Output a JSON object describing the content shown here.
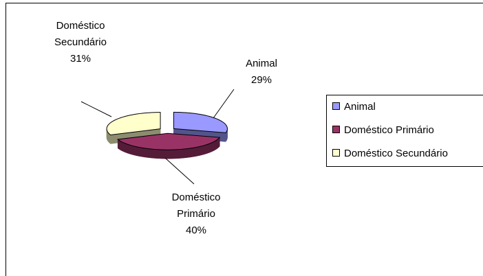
{
  "chart_data": {
    "type": "pie",
    "categories": [
      "Animal",
      "Doméstico Primário",
      "Doméstico Secundário"
    ],
    "values": [
      29,
      40,
      31
    ],
    "value_labels": [
      "29%",
      "40%",
      "31%"
    ],
    "colors": [
      "#9999ff",
      "#993366",
      "#ffffcc"
    ],
    "legend": "right"
  }
}
